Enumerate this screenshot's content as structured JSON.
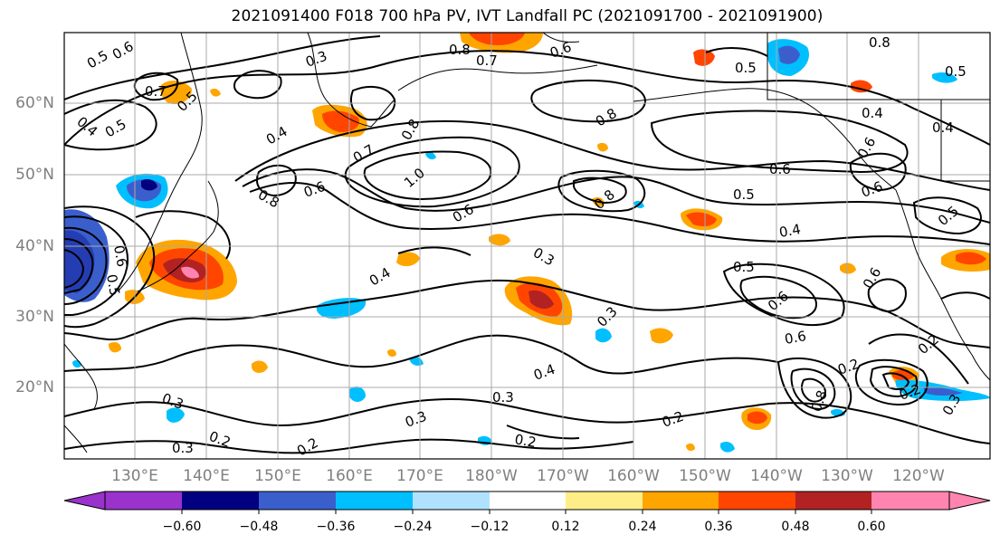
{
  "title": "2021091400 F018 700 hPa PV, IVT Landfall PC (2021091700 - 2021091900)",
  "lat_labels": [
    "60°N",
    "50°N",
    "40°N",
    "30°N",
    "20°N"
  ],
  "lon_labels": [
    "130°E",
    "140°E",
    "150°E",
    "160°E",
    "170°E",
    "180°W",
    "170°W",
    "160°W",
    "150°W",
    "140°W",
    "130°W",
    "120°W"
  ],
  "colorbar": {
    "ticks": [
      "−0.60",
      "−0.48",
      "−0.36",
      "−0.24",
      "−0.12",
      "0.12",
      "0.24",
      "0.36",
      "0.48",
      "0.60"
    ],
    "colors": [
      "#9933cc",
      "#000080",
      "#3a5fcd",
      "#00bfff",
      "#b0e2ff",
      "#ffffff",
      "#ffee88",
      "#ffa500",
      "#ff4500",
      "#b22222",
      "#ff85b0"
    ]
  },
  "contour_labels": [
    {
      "t": "0.5"
    },
    {
      "t": "0.6"
    },
    {
      "t": "0.7"
    },
    {
      "t": "0.3"
    },
    {
      "t": "0.5"
    },
    {
      "t": "0.4"
    },
    {
      "t": "0.5"
    },
    {
      "t": "0.4"
    },
    {
      "t": "0.8"
    },
    {
      "t": "0.7"
    },
    {
      "t": "0.8"
    },
    {
      "t": "0.6"
    },
    {
      "t": "0.8"
    },
    {
      "t": "1.0"
    },
    {
      "t": "0.6"
    },
    {
      "t": "0.4"
    },
    {
      "t": "0.8"
    },
    {
      "t": "0.7"
    },
    {
      "t": "0.6"
    },
    {
      "t": "0.8"
    },
    {
      "t": "0.8"
    },
    {
      "t": "0.5"
    },
    {
      "t": "0.6"
    },
    {
      "t": "0.4"
    },
    {
      "t": "0.6"
    },
    {
      "t": "0.6"
    },
    {
      "t": "0.5"
    },
    {
      "t": "0.4"
    },
    {
      "t": "0.4"
    },
    {
      "t": "0.5"
    },
    {
      "t": "0.5"
    },
    {
      "t": "0.6"
    },
    {
      "t": "0.6"
    },
    {
      "t": "0.6"
    },
    {
      "t": "0.3"
    },
    {
      "t": "0.3"
    },
    {
      "t": "0.4"
    },
    {
      "t": "0.3"
    },
    {
      "t": "0.3"
    },
    {
      "t": "0.2"
    },
    {
      "t": "0.2"
    },
    {
      "t": "0.3"
    },
    {
      "t": "0.2"
    },
    {
      "t": "0.2"
    },
    {
      "t": "0.3"
    },
    {
      "t": "0.2"
    },
    {
      "t": "0.2"
    },
    {
      "t": "0.8"
    },
    {
      "t": "0.2"
    },
    {
      "t": "0.3"
    },
    {
      "t": "0.6"
    },
    {
      "t": "0.5"
    },
    {
      "t": "0.5"
    }
  ]
}
